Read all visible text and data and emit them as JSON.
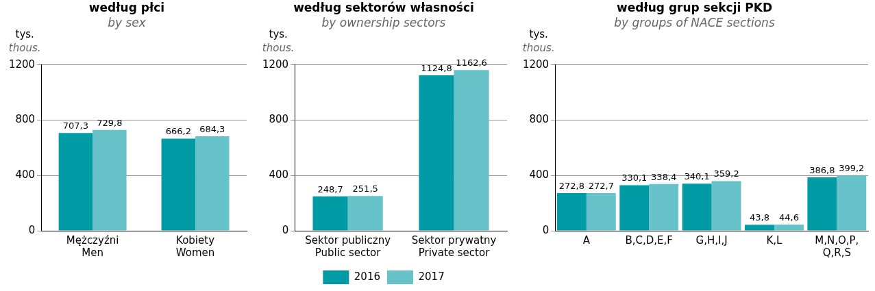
{
  "chart_data": [
    {
      "type": "bar",
      "title": "według płci",
      "subtitle": "by sex",
      "ylabel": "tys.\nthous.",
      "categories": [
        "Mężczyźni\nMen",
        "Kobiety\nWomen"
      ],
      "series": [
        {
          "color": "#009ba4",
          "values": [
            707.3,
            666.2
          ],
          "value_labels": [
            "707,3",
            "666,2"
          ]
        },
        {
          "color": "#67c3c9",
          "values": [
            729.8,
            684.3
          ],
          "value_labels": [
            "729,8",
            "684,3"
          ]
        }
      ],
      "ylim": [
        0,
        1200
      ],
      "yticks": [
        0,
        400,
        800,
        1200
      ],
      "grid": "y",
      "legend": false
    },
    {
      "type": "bar",
      "title": "według sektorów własności",
      "subtitle": "by ownership sectors",
      "ylabel": "tys.\nthous.",
      "categories": [
        "Sektor publiczny\nPublic sector",
        "Sektor prywatny\nPrivate sector"
      ],
      "series": [
        {
          "name": "2016",
          "color": "#009ba4",
          "values": [
            248.7,
            1124.8
          ],
          "value_labels": [
            "248,7",
            "1124,8"
          ]
        },
        {
          "name": "2017",
          "color": "#67c3c9",
          "values": [
            251.5,
            1162.6
          ],
          "value_labels": [
            "251,5",
            "1162,6"
          ]
        }
      ],
      "ylim": [
        0,
        1200
      ],
      "yticks": [
        0,
        400,
        800,
        1200
      ],
      "grid": "y",
      "legend": "bottom"
    },
    {
      "type": "bar",
      "title": "według grup sekcji PKD",
      "subtitle": "by groups of NACE sections",
      "ylabel": "tys.\nthous.",
      "categories": [
        "A",
        "B,C,D,E,F",
        "G,H,I,J",
        "K,L",
        "M,N,O,P,\nQ,R,S"
      ],
      "series": [
        {
          "color": "#009ba4",
          "values": [
            272.8,
            330.1,
            340.1,
            43.8,
            386.8
          ],
          "value_labels": [
            "272,8",
            "330,1",
            "340,1",
            "43,8",
            "386,8"
          ]
        },
        {
          "color": "#67c3c9",
          "values": [
            272.7,
            338.4,
            359.2,
            44.6,
            399.2
          ],
          "value_labels": [
            "272,7",
            "338,4",
            "359,2",
            "44,6",
            "399,2"
          ]
        }
      ],
      "ylim": [
        0,
        1200
      ],
      "yticks": [
        0,
        400,
        800,
        1200
      ],
      "grid": "y",
      "legend": false
    }
  ]
}
